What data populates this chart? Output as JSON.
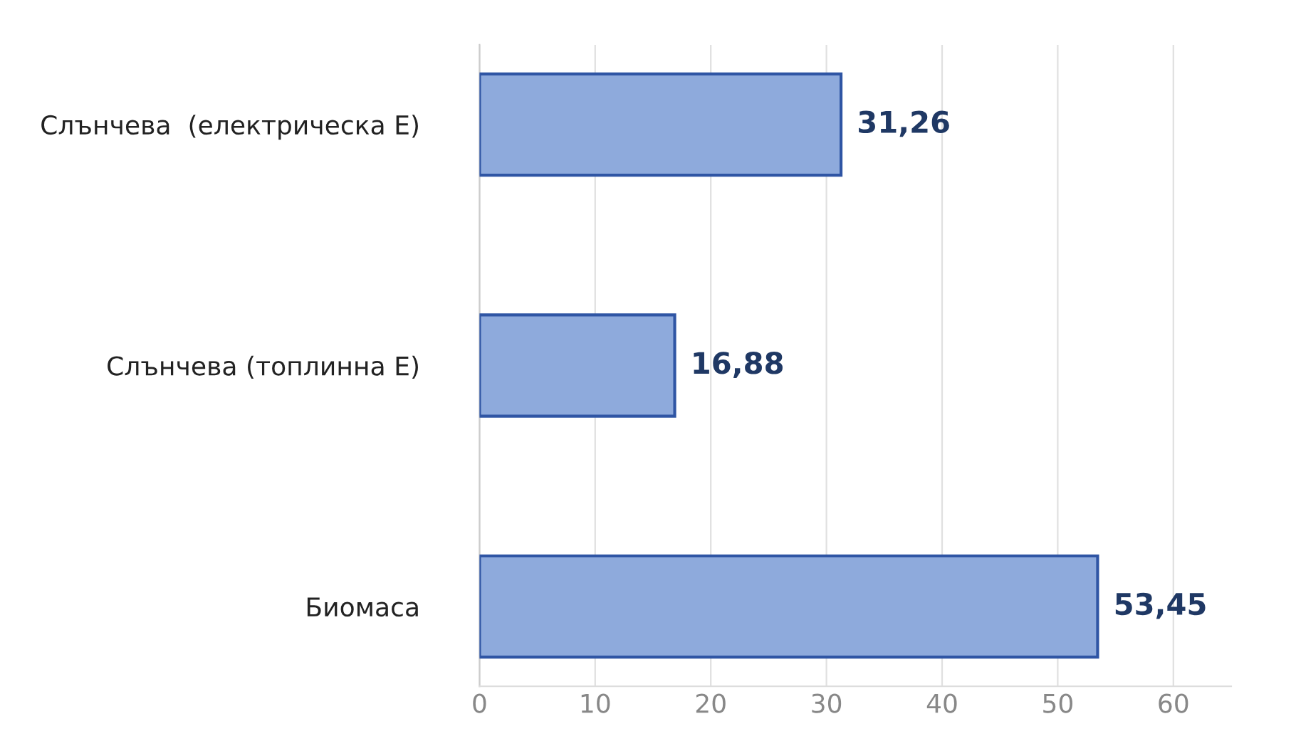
{
  "chart_data": {
    "type": "bar",
    "orientation": "horizontal",
    "categories": [
      "Слънчева  (електрическа Е)",
      "Слънчева (топлинна Е)",
      "Биомаса"
    ],
    "values": [
      31.26,
      16.88,
      53.45
    ],
    "value_labels": [
      "31,26",
      "16,88",
      "53,45"
    ],
    "color": "#8eaadc",
    "xlim": [
      0,
      65
    ],
    "xticks": [
      0,
      10,
      20,
      30,
      40,
      50,
      60
    ],
    "grid": "x",
    "legend": false
  }
}
